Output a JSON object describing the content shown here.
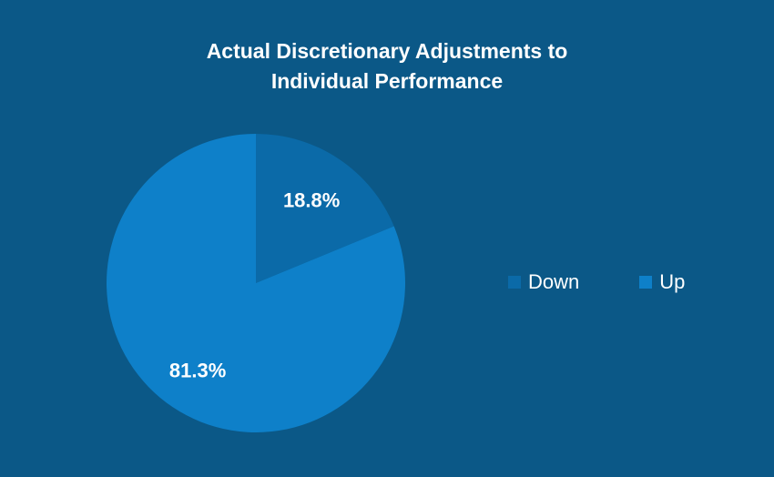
{
  "chart_data": {
    "type": "pie",
    "title_lines": [
      "Actual Discretionary Adjustments to",
      "Individual Performance"
    ],
    "categories": [
      "Down",
      "Up"
    ],
    "values": [
      18.8,
      81.3
    ],
    "data_labels": [
      "18.8%",
      "81.3%"
    ],
    "colors": [
      "#0b6aa8",
      "#0e80c9"
    ],
    "start_angle_deg": 0,
    "direction": "clockwise",
    "legend_position": "right"
  },
  "colors": {
    "background": "#0b5887",
    "text": "#ffffff"
  }
}
